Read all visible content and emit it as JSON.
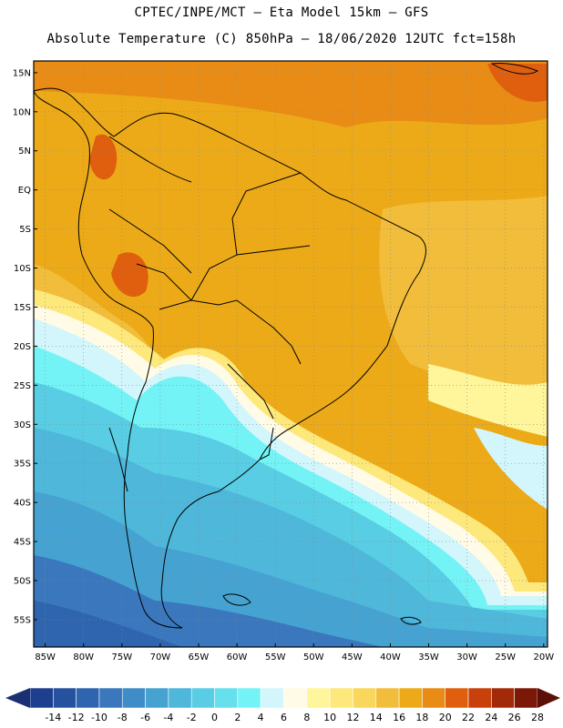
{
  "header": {
    "line1": "CPTEC/INPE/MCT –  Eta Model 15km – GFS",
    "line2": "Absolute Temperature (C) 850hPa – 18/06/2020 12UTC fct=158h"
  },
  "map": {
    "lat_labels": [
      "15N",
      "10N",
      "5N",
      "EQ",
      "5S",
      "10S",
      "15S",
      "20S",
      "25S",
      "30S",
      "35S",
      "40S",
      "45S",
      "50S",
      "55S"
    ],
    "lon_labels": [
      "85W",
      "80W",
      "75W",
      "70W",
      "65W",
      "60W",
      "55W",
      "50W",
      "45W",
      "40W",
      "35W",
      "30W",
      "25W",
      "20W"
    ],
    "lat_values": [
      15,
      10,
      5,
      0,
      -5,
      -10,
      -15,
      -20,
      -25,
      -30,
      -35,
      -40,
      -45,
      -50,
      -55
    ],
    "lon_values": [
      -85,
      -80,
      -75,
      -70,
      -65,
      -60,
      -55,
      -50,
      -45,
      -40,
      -35,
      -30,
      -25,
      -20
    ]
  },
  "colorbar": {
    "labels": [
      "-14",
      "-12",
      "-10",
      "-8",
      "-6",
      "-4",
      "-2",
      "0",
      "2",
      "4",
      "6",
      "8",
      "10",
      "12",
      "14",
      "16",
      "18",
      "20",
      "22",
      "24",
      "26",
      "28"
    ],
    "colors": [
      "#1e3f8e",
      "#26519e",
      "#2f64ae",
      "#3a77bd",
      "#3f8cc6",
      "#46a3d1",
      "#4eb7da",
      "#58cde3",
      "#66e0ec",
      "#74f3f6",
      "#d2f6fb",
      "#fffbe6",
      "#fff59a",
      "#fde87b",
      "#f9d65c",
      "#f1bd3a",
      "#ecaa18",
      "#e88c16",
      "#df5f0e",
      "#c8410a",
      "#a32a08",
      "#7b1807"
    ]
  }
}
